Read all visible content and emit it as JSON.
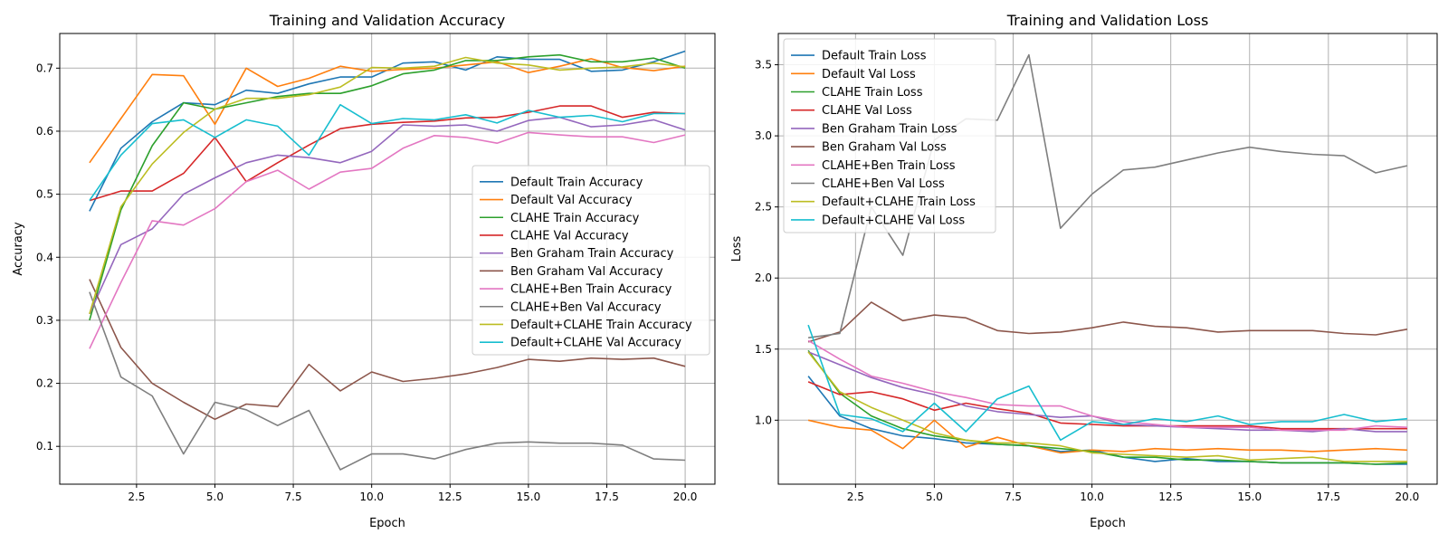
{
  "chart_data": [
    {
      "type": "line",
      "title": "Training and Validation Accuracy",
      "xlabel": "Epoch",
      "ylabel": "Accuracy",
      "xlim": [
        0.05,
        20.95
      ],
      "ylim": [
        0.04,
        0.755
      ],
      "xticks": [
        2.5,
        5.0,
        7.5,
        10.0,
        12.5,
        15.0,
        17.5,
        20.0
      ],
      "xtick_labels": [
        "2.5",
        "5.0",
        "7.5",
        "10.0",
        "12.5",
        "15.0",
        "17.5",
        "20.0"
      ],
      "yticks": [
        0.1,
        0.2,
        0.3,
        0.4,
        0.5,
        0.6,
        0.7
      ],
      "ytick_labels": [
        "0.1",
        "0.2",
        "0.3",
        "0.4",
        "0.5",
        "0.6",
        "0.7"
      ],
      "grid": true,
      "legend_position": "center-right",
      "x": [
        1,
        2,
        3,
        4,
        5,
        6,
        7,
        8,
        9,
        10,
        11,
        12,
        13,
        14,
        15,
        16,
        17,
        18,
        19,
        20
      ],
      "series": [
        {
          "name": "Default Train Accuracy",
          "color": "#1f77b4",
          "values": [
            0.473,
            0.573,
            0.615,
            0.645,
            0.642,
            0.665,
            0.66,
            0.675,
            0.686,
            0.686,
            0.708,
            0.71,
            0.697,
            0.718,
            0.714,
            0.714,
            0.695,
            0.697,
            0.71,
            0.727
          ]
        },
        {
          "name": "Default Val Accuracy",
          "color": "#ff7f0e",
          "values": [
            0.55,
            0.62,
            0.69,
            0.688,
            0.611,
            0.7,
            0.671,
            0.684,
            0.703,
            0.695,
            0.698,
            0.7,
            0.705,
            0.71,
            0.693,
            0.703,
            0.715,
            0.701,
            0.696,
            0.703
          ]
        },
        {
          "name": "CLAHE Train Accuracy",
          "color": "#2ca02c",
          "values": [
            0.3,
            0.475,
            0.577,
            0.645,
            0.635,
            0.645,
            0.655,
            0.66,
            0.66,
            0.672,
            0.691,
            0.697,
            0.712,
            0.712,
            0.718,
            0.721,
            0.71,
            0.71,
            0.716,
            0.7
          ]
        },
        {
          "name": "CLAHE Val Accuracy",
          "color": "#d62728",
          "values": [
            0.49,
            0.505,
            0.505,
            0.533,
            0.59,
            0.52,
            0.55,
            0.578,
            0.604,
            0.611,
            0.614,
            0.616,
            0.621,
            0.622,
            0.63,
            0.64,
            0.64,
            0.622,
            0.63,
            0.628
          ]
        },
        {
          "name": "Ben Graham Train Accuracy",
          "color": "#9467bd",
          "values": [
            0.31,
            0.42,
            0.445,
            0.5,
            0.526,
            0.55,
            0.562,
            0.558,
            0.55,
            0.568,
            0.61,
            0.608,
            0.61,
            0.6,
            0.617,
            0.622,
            0.607,
            0.61,
            0.618,
            0.602
          ]
        },
        {
          "name": "Ben Graham Val Accuracy",
          "color": "#8c564b",
          "values": [
            0.365,
            0.257,
            0.2,
            0.17,
            0.143,
            0.167,
            0.163,
            0.23,
            0.188,
            0.218,
            0.203,
            0.208,
            0.215,
            0.225,
            0.238,
            0.235,
            0.24,
            0.238,
            0.24,
            0.227
          ]
        },
        {
          "name": "CLAHE+Ben Train Accuracy",
          "color": "#e377c2",
          "values": [
            0.255,
            0.36,
            0.458,
            0.451,
            0.477,
            0.52,
            0.538,
            0.508,
            0.535,
            0.541,
            0.573,
            0.593,
            0.59,
            0.581,
            0.598,
            0.594,
            0.591,
            0.591,
            0.582,
            0.594
          ]
        },
        {
          "name": "CLAHE+Ben Val Accuracy",
          "color": "#7f7f7f",
          "values": [
            0.345,
            0.21,
            0.18,
            0.088,
            0.17,
            0.158,
            0.133,
            0.157,
            0.063,
            0.088,
            0.088,
            0.08,
            0.095,
            0.105,
            0.107,
            0.105,
            0.105,
            0.102,
            0.08,
            0.078
          ]
        },
        {
          "name": "Default+CLAHE Train Accuracy",
          "color": "#bcbd22",
          "values": [
            0.31,
            0.48,
            0.548,
            0.598,
            0.635,
            0.652,
            0.652,
            0.658,
            0.67,
            0.701,
            0.7,
            0.703,
            0.717,
            0.708,
            0.705,
            0.697,
            0.7,
            0.702,
            0.708,
            0.702
          ]
        },
        {
          "name": "Default+CLAHE Val Accuracy",
          "color": "#17becf",
          "values": [
            0.49,
            0.562,
            0.612,
            0.618,
            0.59,
            0.618,
            0.608,
            0.562,
            0.642,
            0.612,
            0.62,
            0.618,
            0.626,
            0.613,
            0.633,
            0.622,
            0.625,
            0.615,
            0.628,
            0.628
          ]
        }
      ]
    },
    {
      "type": "line",
      "title": "Training and Validation Loss",
      "xlabel": "Epoch",
      "ylabel": "Loss",
      "xlim": [
        0.05,
        20.95
      ],
      "ylim": [
        0.55,
        3.72
      ],
      "xticks": [
        2.5,
        5.0,
        7.5,
        10.0,
        12.5,
        15.0,
        17.5,
        20.0
      ],
      "xtick_labels": [
        "2.5",
        "5.0",
        "7.5",
        "10.0",
        "12.5",
        "15.0",
        "17.5",
        "20.0"
      ],
      "yticks": [
        1.0,
        1.5,
        2.0,
        2.5,
        3.0,
        3.5
      ],
      "ytick_labels": [
        "1.0",
        "1.5",
        "2.0",
        "2.5",
        "3.0",
        "3.5"
      ],
      "grid": true,
      "legend_position": "upper-left",
      "x": [
        1,
        2,
        3,
        4,
        5,
        6,
        7,
        8,
        9,
        10,
        11,
        12,
        13,
        14,
        15,
        16,
        17,
        18,
        19,
        20
      ],
      "series": [
        {
          "name": "Default Train Loss",
          "color": "#1f77b4",
          "values": [
            1.31,
            1.03,
            0.94,
            0.89,
            0.87,
            0.84,
            0.83,
            0.82,
            0.78,
            0.79,
            0.74,
            0.71,
            0.73,
            0.71,
            0.71,
            0.7,
            0.7,
            0.7,
            0.69,
            0.69
          ]
        },
        {
          "name": "Default Val Loss",
          "color": "#ff7f0e",
          "values": [
            1.0,
            0.95,
            0.93,
            0.8,
            1.0,
            0.81,
            0.88,
            0.82,
            0.77,
            0.79,
            0.78,
            0.8,
            0.79,
            0.8,
            0.79,
            0.79,
            0.78,
            0.79,
            0.8,
            0.79
          ]
        },
        {
          "name": "CLAHE Train Loss",
          "color": "#2ca02c",
          "values": [
            1.49,
            1.19,
            1.03,
            0.94,
            0.89,
            0.86,
            0.83,
            0.82,
            0.8,
            0.78,
            0.74,
            0.74,
            0.72,
            0.72,
            0.71,
            0.7,
            0.7,
            0.7,
            0.69,
            0.7
          ]
        },
        {
          "name": "CLAHE Val Loss",
          "color": "#d62728",
          "values": [
            1.27,
            1.18,
            1.2,
            1.15,
            1.07,
            1.12,
            1.08,
            1.05,
            0.98,
            0.97,
            0.96,
            0.96,
            0.96,
            0.96,
            0.96,
            0.94,
            0.94,
            0.94,
            0.94,
            0.94
          ]
        },
        {
          "name": "Ben Graham Train Loss",
          "color": "#9467bd",
          "values": [
            1.48,
            1.39,
            1.3,
            1.23,
            1.18,
            1.1,
            1.06,
            1.04,
            1.02,
            1.03,
            0.97,
            0.96,
            0.95,
            0.94,
            0.93,
            0.93,
            0.92,
            0.94,
            0.92,
            0.92
          ]
        },
        {
          "name": "Ben Graham Val Loss",
          "color": "#8c564b",
          "values": [
            1.55,
            1.62,
            1.83,
            1.7,
            1.74,
            1.72,
            1.63,
            1.61,
            1.62,
            1.65,
            1.69,
            1.66,
            1.65,
            1.62,
            1.63,
            1.63,
            1.63,
            1.61,
            1.6,
            1.64
          ]
        },
        {
          "name": "CLAHE+Ben Train Loss",
          "color": "#e377c2",
          "values": [
            1.56,
            1.43,
            1.31,
            1.26,
            1.2,
            1.16,
            1.11,
            1.1,
            1.1,
            1.03,
            0.99,
            0.97,
            0.95,
            0.95,
            0.95,
            0.93,
            0.93,
            0.93,
            0.96,
            0.95
          ]
        },
        {
          "name": "CLAHE+Ben Val Loss",
          "color": "#7f7f7f",
          "values": [
            1.58,
            1.61,
            2.5,
            2.16,
            2.97,
            3.12,
            3.11,
            3.57,
            2.35,
            2.59,
            2.76,
            2.78,
            2.83,
            2.88,
            2.92,
            2.89,
            2.87,
            2.86,
            2.74,
            2.79
          ]
        },
        {
          "name": "Default+CLAHE Train Loss",
          "color": "#bcbd22",
          "values": [
            1.48,
            1.2,
            1.09,
            1.0,
            0.91,
            0.86,
            0.84,
            0.84,
            0.82,
            0.77,
            0.76,
            0.75,
            0.74,
            0.75,
            0.72,
            0.73,
            0.74,
            0.71,
            0.71,
            0.71
          ]
        },
        {
          "name": "Default+CLAHE Val Loss",
          "color": "#17becf",
          "values": [
            1.67,
            1.04,
            1.01,
            0.92,
            1.12,
            0.92,
            1.15,
            1.24,
            0.86,
            0.99,
            0.97,
            1.01,
            0.99,
            1.03,
            0.97,
            0.99,
            0.99,
            1.04,
            0.99,
            1.01
          ]
        }
      ]
    }
  ]
}
